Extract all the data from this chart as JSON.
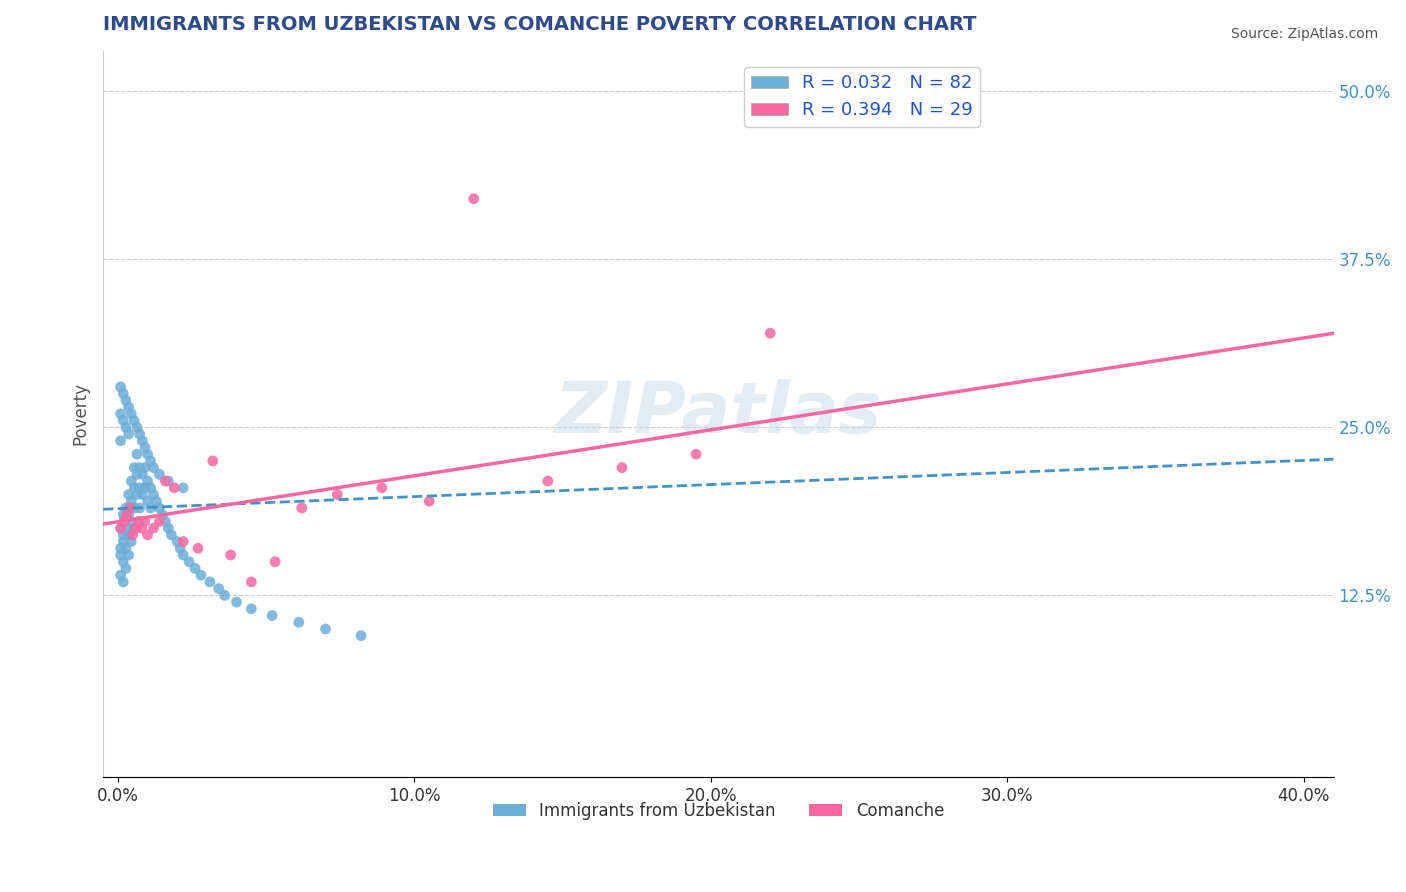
{
  "title": "IMMIGRANTS FROM UZBEKISTAN VS COMANCHE POVERTY CORRELATION CHART",
  "source": "Source: ZipAtlas.com",
  "xlabel": "",
  "ylabel": "Poverty",
  "x_tick_labels": [
    "0.0%",
    "10.0%",
    "20.0%",
    "30.0%",
    "40.0%"
  ],
  "x_tick_vals": [
    0.0,
    10.0,
    20.0,
    30.0,
    40.0
  ],
  "y_tick_labels_right": [
    "12.5%",
    "25.0%",
    "37.5%",
    "50.0%"
  ],
  "y_tick_vals_right": [
    12.5,
    25.0,
    37.5,
    50.0
  ],
  "xlim": [
    -0.5,
    41.0
  ],
  "ylim": [
    -1.0,
    53.0
  ],
  "legend_label_1": "R = 0.032   N = 82",
  "legend_label_2": "R = 0.394   N = 29",
  "legend_bottom_label_1": "Immigrants from Uzbekistan",
  "legend_bottom_label_2": "Comanche",
  "blue_color": "#6baed6",
  "blue_color_dark": "#4292c6",
  "pink_color": "#f9b4c6",
  "pink_color_dark": "#f768a1",
  "watermark": "ZIPatlas",
  "title_color": "#2c4a8c",
  "R1": 0.032,
  "N1": 82,
  "R2": 0.394,
  "N2": 29,
  "blue_x": [
    0.09,
    0.09,
    0.09,
    0.09,
    0.18,
    0.18,
    0.18,
    0.18,
    0.18,
    0.27,
    0.27,
    0.27,
    0.27,
    0.36,
    0.36,
    0.36,
    0.36,
    0.45,
    0.45,
    0.45,
    0.45,
    0.55,
    0.55,
    0.55,
    0.55,
    0.64,
    0.64,
    0.64,
    0.73,
    0.73,
    0.73,
    0.82,
    0.82,
    0.91,
    0.91,
    1.0,
    1.0,
    1.1,
    1.1,
    1.2,
    1.3,
    1.4,
    1.5,
    1.6,
    1.7,
    1.8,
    2.0,
    2.1,
    2.2,
    2.4,
    2.6,
    2.8,
    3.1,
    3.4,
    3.6,
    4.0,
    4.5,
    5.2,
    6.1,
    7.0,
    8.2,
    0.09,
    0.09,
    0.09,
    0.18,
    0.18,
    0.27,
    0.27,
    0.36,
    0.36,
    0.45,
    0.55,
    0.64,
    0.73,
    0.82,
    0.91,
    1.0,
    1.1,
    1.2,
    1.4,
    1.7,
    2.2
  ],
  "blue_y": [
    17.5,
    16.0,
    15.5,
    14.0,
    18.5,
    17.0,
    16.5,
    15.0,
    13.5,
    19.0,
    17.5,
    16.0,
    14.5,
    20.0,
    18.5,
    17.0,
    15.5,
    21.0,
    19.5,
    18.0,
    16.5,
    22.0,
    20.5,
    19.0,
    17.5,
    23.0,
    21.5,
    20.0,
    22.0,
    20.5,
    19.0,
    21.5,
    20.0,
    22.0,
    20.5,
    21.0,
    19.5,
    20.5,
    19.0,
    20.0,
    19.5,
    19.0,
    18.5,
    18.0,
    17.5,
    17.0,
    16.5,
    16.0,
    15.5,
    15.0,
    14.5,
    14.0,
    13.5,
    13.0,
    12.5,
    12.0,
    11.5,
    11.0,
    10.5,
    10.0,
    9.5,
    28.0,
    26.0,
    24.0,
    27.5,
    25.5,
    27.0,
    25.0,
    26.5,
    24.5,
    26.0,
    25.5,
    25.0,
    24.5,
    24.0,
    23.5,
    23.0,
    22.5,
    22.0,
    21.5,
    21.0,
    20.5
  ],
  "pink_x": [
    0.1,
    0.2,
    0.3,
    0.4,
    0.5,
    0.6,
    0.7,
    0.8,
    0.9,
    1.0,
    1.2,
    1.4,
    1.6,
    1.9,
    2.2,
    2.7,
    3.2,
    3.8,
    4.5,
    5.3,
    6.2,
    7.4,
    8.9,
    10.5,
    12.0,
    14.5,
    17.0,
    19.5,
    22.0
  ],
  "pink_y": [
    17.5,
    18.0,
    18.5,
    19.0,
    17.0,
    17.5,
    18.0,
    17.5,
    18.0,
    17.0,
    17.5,
    18.0,
    21.0,
    20.5,
    16.5,
    16.0,
    22.5,
    15.5,
    13.5,
    15.0,
    19.0,
    20.0,
    20.5,
    19.5,
    42.0,
    21.0,
    22.0,
    23.0,
    32.0
  ]
}
